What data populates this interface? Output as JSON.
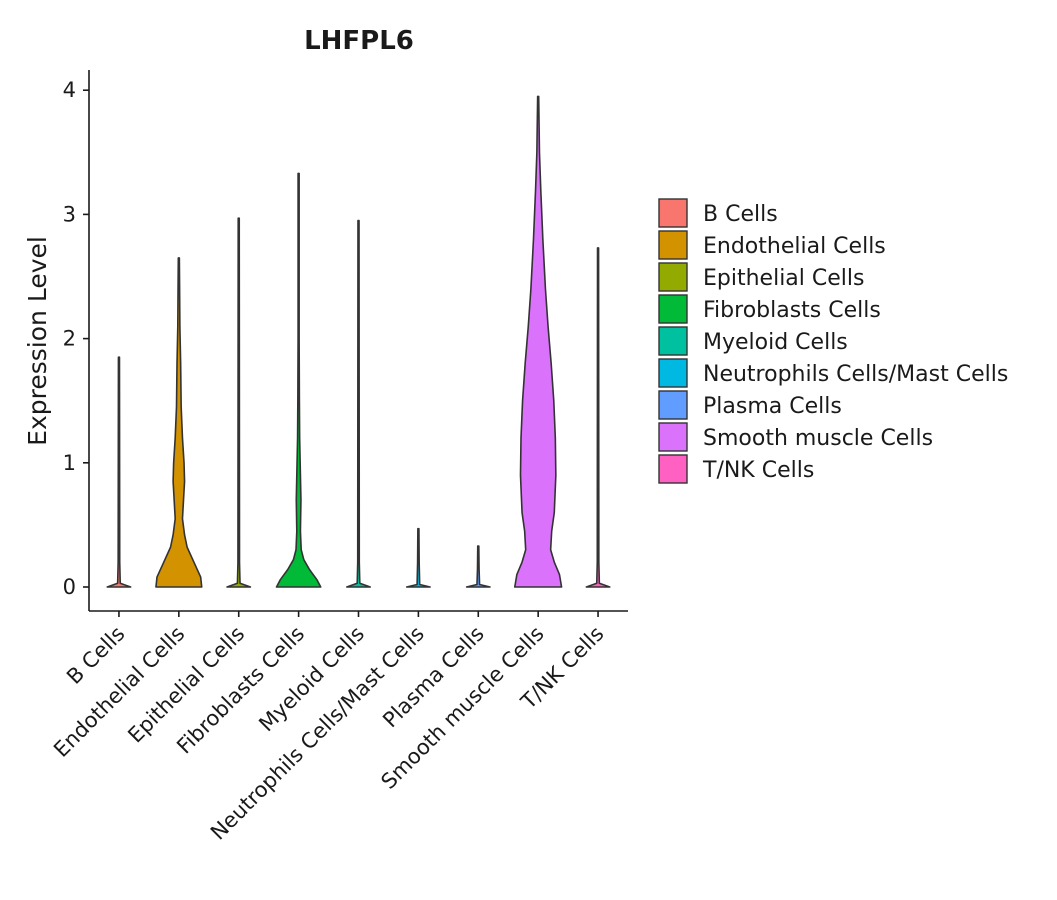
{
  "chart_data": {
    "type": "violin",
    "title": "LHFPL6",
    "xlabel": "",
    "ylabel": "Expression Level",
    "ylim": [
      -0.2,
      4.15
    ],
    "yticks": [
      0,
      1,
      2,
      3,
      4
    ],
    "grid": false,
    "legend_position": "right",
    "categories": [
      "B Cells",
      "Endothelial Cells",
      "Epithelial Cells",
      "Fibroblasts Cells",
      "Myeloid Cells",
      "Neutrophils Cells/Mast Cells",
      "Plasma Cells",
      "Smooth muscle Cells",
      "T/NK Cells"
    ],
    "colors": [
      "#F8766D",
      "#D39200",
      "#93AA00",
      "#00BA38",
      "#00C19F",
      "#00B9E3",
      "#619CFF",
      "#DB72FB",
      "#FF61C3"
    ],
    "series": [
      {
        "name": "B Cells",
        "max": 1.85,
        "profile": [
          [
            0,
            0.45
          ],
          [
            0.03,
            0.05
          ],
          [
            0.2,
            0.03
          ],
          [
            1.85,
            0.02
          ]
        ]
      },
      {
        "name": "Endothelial Cells",
        "max": 2.65,
        "profile": [
          [
            0,
            0.88
          ],
          [
            0.08,
            0.84
          ],
          [
            0.2,
            0.58
          ],
          [
            0.32,
            0.32
          ],
          [
            0.42,
            0.22
          ],
          [
            0.55,
            0.14
          ],
          [
            0.7,
            0.18
          ],
          [
            0.85,
            0.22
          ],
          [
            1.0,
            0.2
          ],
          [
            1.2,
            0.14
          ],
          [
            1.45,
            0.09
          ],
          [
            1.8,
            0.07
          ],
          [
            2.1,
            0.04
          ],
          [
            2.4,
            0.03
          ],
          [
            2.65,
            0.02
          ]
        ]
      },
      {
        "name": "Epithelial Cells",
        "max": 2.97,
        "profile": [
          [
            0,
            0.45
          ],
          [
            0.03,
            0.05
          ],
          [
            0.2,
            0.03
          ],
          [
            2.97,
            0.02
          ]
        ]
      },
      {
        "name": "Fibroblasts Cells",
        "max": 3.33,
        "profile": [
          [
            0,
            0.85
          ],
          [
            0.06,
            0.7
          ],
          [
            0.14,
            0.42
          ],
          [
            0.22,
            0.2
          ],
          [
            0.3,
            0.1
          ],
          [
            0.45,
            0.07
          ],
          [
            0.7,
            0.09
          ],
          [
            0.9,
            0.07
          ],
          [
            1.2,
            0.04
          ],
          [
            1.5,
            0.03
          ],
          [
            2.0,
            0.02
          ],
          [
            3.33,
            0.02
          ]
        ]
      },
      {
        "name": "Myeloid Cells",
        "max": 2.95,
        "profile": [
          [
            0,
            0.45
          ],
          [
            0.03,
            0.05
          ],
          [
            0.2,
            0.03
          ],
          [
            2.95,
            0.02
          ]
        ]
      },
      {
        "name": "Neutrophils Cells/Mast Cells",
        "max": 0.47,
        "profile": [
          [
            0,
            0.45
          ],
          [
            0.02,
            0.05
          ],
          [
            0.2,
            0.03
          ],
          [
            0.47,
            0.02
          ]
        ]
      },
      {
        "name": "Plasma Cells",
        "max": 0.33,
        "profile": [
          [
            0,
            0.45
          ],
          [
            0.02,
            0.05
          ],
          [
            0.15,
            0.03
          ],
          [
            0.33,
            0.02
          ]
        ]
      },
      {
        "name": "Smooth muscle Cells",
        "max": 3.95,
        "profile": [
          [
            0,
            0.9
          ],
          [
            0.1,
            0.82
          ],
          [
            0.2,
            0.62
          ],
          [
            0.3,
            0.48
          ],
          [
            0.45,
            0.52
          ],
          [
            0.6,
            0.62
          ],
          [
            0.9,
            0.68
          ],
          [
            1.2,
            0.66
          ],
          [
            1.5,
            0.6
          ],
          [
            1.8,
            0.5
          ],
          [
            2.1,
            0.38
          ],
          [
            2.4,
            0.28
          ],
          [
            2.8,
            0.18
          ],
          [
            3.2,
            0.1
          ],
          [
            3.5,
            0.05
          ],
          [
            3.95,
            0.02
          ]
        ]
      },
      {
        "name": "T/NK Cells",
        "max": 2.73,
        "profile": [
          [
            0,
            0.45
          ],
          [
            0.03,
            0.05
          ],
          [
            0.2,
            0.03
          ],
          [
            2.73,
            0.02
          ]
        ]
      }
    ]
  }
}
